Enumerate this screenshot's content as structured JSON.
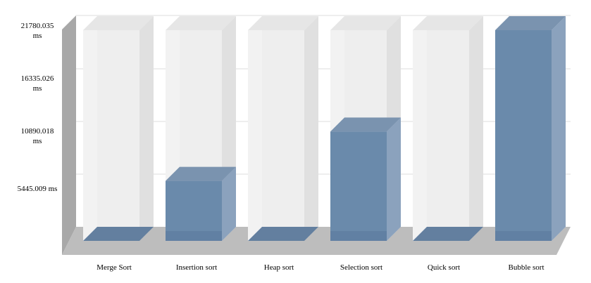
{
  "chart_data": {
    "type": "bar",
    "title": "",
    "xlabel": "",
    "ylabel": "",
    "categories": [
      "Merge Sort",
      "Insertion sort",
      "Heap sort",
      "Selection sort",
      "Quick sort",
      "Bubble sort"
    ],
    "values": [
      0,
      6200,
      0,
      11300,
      0,
      21780
    ],
    "ylim": [
      0,
      21780.035
    ],
    "y_ticks": [
      {
        "value": 5445.009,
        "label_lines": [
          "5445.009 ms"
        ]
      },
      {
        "value": 10890.018,
        "label_lines": [
          "10890.018",
          "ms"
        ]
      },
      {
        "value": 16335.026,
        "label_lines": [
          "16335.026",
          "ms"
        ]
      },
      {
        "value": 21780.035,
        "label_lines": [
          "21780.035",
          "ms"
        ]
      }
    ],
    "grid": true,
    "legend": "none",
    "style": "3d",
    "colors": {
      "bar_front": "#6a8aab",
      "bar_top": "#7a93af",
      "bar_side": "#8ba2bd",
      "placeholder_front": "#eeeeee",
      "placeholder_side": "#e0e0e0",
      "wall_left": "#a8a8a8",
      "floor": "#bdbdbd",
      "grid": "#dddddd"
    }
  }
}
